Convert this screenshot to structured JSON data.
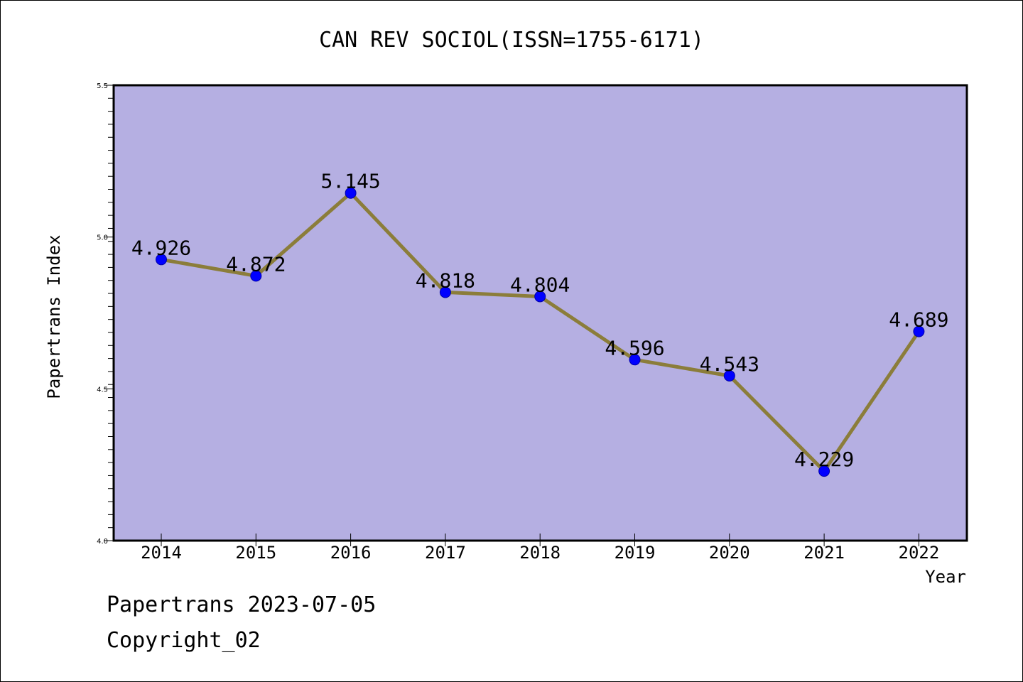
{
  "chart_data": {
    "type": "line",
    "title": "CAN REV SOCIOL(ISSN=1755-6171)",
    "xlabel": "Year",
    "ylabel": "Papertrans Index",
    "categories": [
      "2014",
      "2015",
      "2016",
      "2017",
      "2018",
      "2019",
      "2020",
      "2021",
      "2022"
    ],
    "values": [
      4.926,
      4.872,
      5.145,
      4.818,
      4.804,
      4.596,
      4.543,
      4.229,
      4.689
    ],
    "data_labels": [
      "4.926",
      "4.872",
      "5.145",
      "4.818",
      "4.804",
      "4.596",
      "4.543",
      "4.229",
      "4.689"
    ],
    "ylim": [
      4.0,
      5.5
    ],
    "yticks": [
      "4.0",
      "4.5",
      "5.0",
      "5.5"
    ],
    "grid": false,
    "legend": "none",
    "colors": {
      "plot_background": "#b5afe2",
      "line": "#8b7d3a",
      "marker": "#0000ff"
    }
  },
  "footer": {
    "date_line": "Papertrans 2023-07-05",
    "copyright": "Copyright_02"
  }
}
